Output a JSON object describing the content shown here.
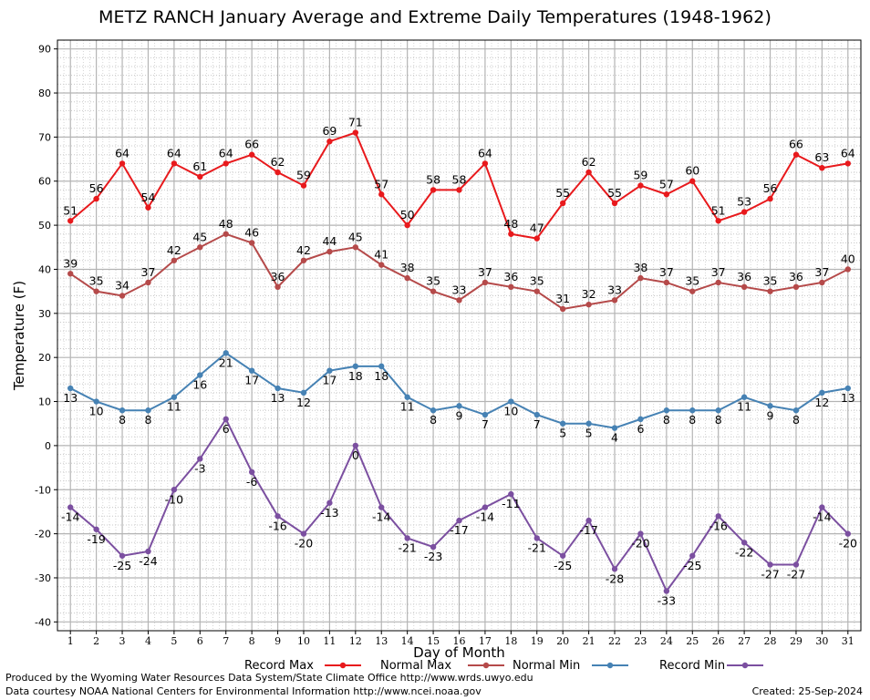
{
  "title": "METZ RANCH January Average and Extreme Daily Temperatures (1948-1962)",
  "footer": {
    "credit1": "Produced by the Wyoming Water Resources Data System/State Climate Office http://www.wrds.uwyo.edu",
    "credit2": "Data courtesy NOAA National Centers for Environmental Information http://www.ncei.noaa.gov",
    "created": "Created:  25-Sep-2024"
  },
  "chart_data": {
    "type": "line",
    "title": "METZ RANCH January Average and Extreme Daily Temperatures (1948-1962)",
    "xlabel": "Day of Month",
    "ylabel": "Temperature (F)",
    "x": [
      1,
      2,
      3,
      4,
      5,
      6,
      7,
      8,
      9,
      10,
      11,
      12,
      13,
      14,
      15,
      16,
      17,
      18,
      19,
      20,
      21,
      22,
      23,
      24,
      25,
      26,
      27,
      28,
      29,
      30,
      31
    ],
    "xlim": [
      0.5,
      31.5
    ],
    "ylim": [
      -42,
      92
    ],
    "yticks": [
      -40,
      -30,
      -20,
      -10,
      0,
      10,
      20,
      30,
      40,
      50,
      60,
      70,
      80,
      90
    ],
    "grid": true,
    "legend_position": "bottom",
    "series": [
      {
        "name": "Record Max",
        "color": "#e8191c",
        "label_pos": "above",
        "values": [
          51,
          56,
          64,
          54,
          64,
          61,
          64,
          66,
          62,
          59,
          69,
          71,
          57,
          50,
          58,
          58,
          64,
          48,
          47,
          55,
          62,
          55,
          59,
          57,
          60,
          51,
          53,
          56,
          66,
          63,
          64
        ]
      },
      {
        "name": "Normal Max",
        "color": "#b54a4a",
        "label_pos": "above",
        "values": [
          39,
          35,
          34,
          37,
          42,
          45,
          48,
          46,
          36,
          42,
          44,
          45,
          41,
          38,
          35,
          33,
          37,
          36,
          35,
          31,
          32,
          33,
          38,
          37,
          35,
          37,
          36,
          35,
          36,
          37,
          40
        ]
      },
      {
        "name": "Normal Min",
        "color": "#4682b4",
        "label_pos": "below",
        "values": [
          13,
          10,
          8,
          8,
          11,
          16,
          21,
          17,
          13,
          12,
          17,
          18,
          18,
          11,
          8,
          9,
          7,
          10,
          7,
          5,
          5,
          4,
          6,
          8,
          8,
          8,
          11,
          9,
          8,
          12,
          13
        ]
      },
      {
        "name": "Record Min",
        "color": "#7b4fa0",
        "label_pos": "below",
        "values": [
          -14,
          -19,
          -25,
          -24,
          -10,
          -3,
          6,
          -6,
          -16,
          -20,
          -13,
          0,
          -14,
          -21,
          -23,
          -17,
          -14,
          -11,
          -21,
          -25,
          -17,
          -28,
          -20,
          -33,
          -25,
          -16,
          -22,
          -27,
          -27,
          -14,
          -20
        ]
      }
    ]
  }
}
